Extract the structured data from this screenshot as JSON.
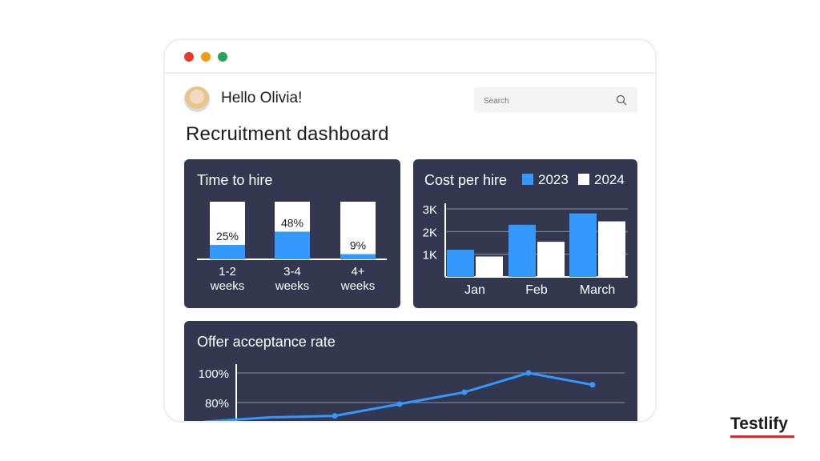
{
  "window": {
    "controls": [
      {
        "name": "close",
        "color": "#e8392f"
      },
      {
        "name": "minimize",
        "color": "#f39c12"
      },
      {
        "name": "maximize",
        "color": "#27a35a"
      }
    ]
  },
  "header": {
    "greeting": "Hello Olivia!",
    "search_placeholder": "Search"
  },
  "page_title": "Recruitment dashboard",
  "colors": {
    "card_bg": "#333850",
    "accent_blue": "#3399ff",
    "white": "#ffffff"
  },
  "cards": {
    "time_to_hire": {
      "title": "Time to hire"
    },
    "cost_per_hire": {
      "title": "Cost per hire"
    },
    "offer_acceptance": {
      "title": "Offer acceptance rate"
    }
  },
  "chart_data": [
    {
      "type": "bar",
      "title": "Time to hire",
      "categories": [
        [
          "1-2",
          "weeks"
        ],
        [
          "3-4",
          "weeks"
        ],
        [
          "4+",
          "weeks"
        ]
      ],
      "values": [
        25,
        48,
        9
      ],
      "data_labels": [
        "25%",
        "48%",
        "9%"
      ],
      "unit": "%",
      "ylim": [
        0,
        100
      ]
    },
    {
      "type": "bar",
      "title": "Cost per hire",
      "categories": [
        "Jan",
        "Feb",
        "March"
      ],
      "series": [
        {
          "name": "2023",
          "color": "#3399ff",
          "values": [
            1200,
            2300,
            2800
          ]
        },
        {
          "name": "2024",
          "color": "#ffffff",
          "values": [
            900,
            1550,
            2450
          ]
        }
      ],
      "yticks": [
        "1K",
        "2K",
        "3K"
      ],
      "ytick_values": [
        1000,
        2000,
        3000
      ],
      "ylim": [
        0,
        3000
      ],
      "legend": "top-right",
      "grid": true
    },
    {
      "type": "line",
      "title": "Offer acceptance rate",
      "series": [
        {
          "color": "#3399ff",
          "values": [
            67,
            70,
            71,
            79,
            87,
            100,
            92
          ]
        }
      ],
      "yticks": [
        "100%",
        "80%"
      ],
      "ytick_values": [
        100,
        80
      ],
      "ylim": [
        60,
        105
      ],
      "grid": true
    }
  ],
  "brand": {
    "logo_text": "Testlify"
  }
}
